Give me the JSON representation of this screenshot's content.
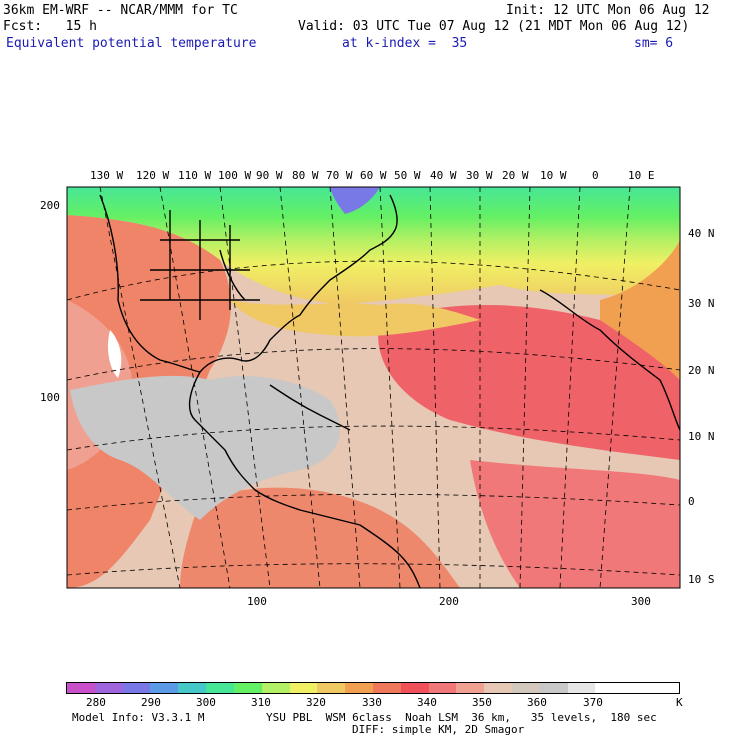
{
  "header": {
    "model_line": "36km EM-WRF -- NCAR/MMM for TC",
    "init_line": "Init: 12 UTC Mon 06 Aug 12",
    "fcst_line": "Fcst:   15 h",
    "valid_line": "Valid: 03 UTC Tue 07 Aug 12 (21 MDT Mon 06 Aug 12)",
    "field_name": "Equivalent potential temperature",
    "level": "at k-index =  35",
    "smoothing": "sm= 6"
  },
  "map": {
    "lon_labels": [
      "130 W",
      "120 W",
      "110 W",
      "100 W",
      "90 W",
      "80 W",
      "70 W",
      "60 W",
      "50 W",
      "40 W",
      "30 W",
      "20 W",
      "10 W",
      "0",
      "10 E"
    ],
    "lat_labels": [
      "40 N",
      "30 N",
      "20 N",
      "10 N",
      "0",
      "10 S"
    ],
    "grid_y_labels": [
      "200",
      "100"
    ],
    "grid_x_labels": [
      "100",
      "200",
      "300"
    ]
  },
  "colorbar": {
    "labels": [
      "280",
      "290",
      "300",
      "310",
      "320",
      "330",
      "340",
      "350",
      "360",
      "370"
    ],
    "unit": "K",
    "colors": [
      "#c850c8",
      "#a064dc",
      "#7878e6",
      "#5a9ae6",
      "#46c8c8",
      "#46e696",
      "#64f064",
      "#b4f064",
      "#f0f064",
      "#f0c864",
      "#f0a050",
      "#f0785a",
      "#f0505a",
      "#f07878",
      "#f0a090",
      "#e6c8b4",
      "#d2c8be",
      "#c8c8c8",
      "#e6e6e6",
      "#ffffff",
      "#ffffff",
      "#ffffff"
    ]
  },
  "footer": {
    "model_info": "Model Info: V3.3.1 M",
    "physics": "YSU PBL  WSM 6class  Noah LSM  36 km,   35 levels,  180 sec",
    "diffusion": "DIFF: simple KM, 2D Smagor"
  }
}
